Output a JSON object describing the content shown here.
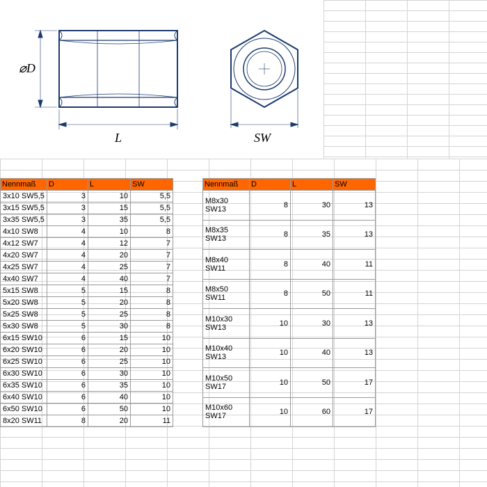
{
  "diagram": {
    "label_d": "⌀D",
    "label_l": "L",
    "label_sw": "SW",
    "stroke": "#1a3a6e",
    "thin_stroke": "#1a3a6e"
  },
  "table1": {
    "headers": [
      "Nennmaß",
      "D",
      "L",
      "SW"
    ],
    "rows": [
      [
        "3x10 SW5,5",
        "3",
        "10",
        "5,5"
      ],
      [
        "3x15 SW5,5",
        "3",
        "15",
        "5,5"
      ],
      [
        "3x35 SW5,5",
        "3",
        "35",
        "5,5"
      ],
      [
        "4x10 SW8",
        "4",
        "10",
        "8"
      ],
      [
        "4x12 SW7",
        "4",
        "12",
        "7"
      ],
      [
        "4x20 SW7",
        "4",
        "20",
        "7"
      ],
      [
        "4x25 SW7",
        "4",
        "25",
        "7"
      ],
      [
        "4x40 SW7",
        "4",
        "40",
        "7"
      ],
      [
        "5x15 SW8",
        "5",
        "15",
        "8"
      ],
      [
        "5x20 SW8",
        "5",
        "20",
        "8"
      ],
      [
        "5x25 SW8",
        "5",
        "25",
        "8"
      ],
      [
        "5x30 SW8",
        "5",
        "30",
        "8"
      ],
      [
        "6x15 SW10",
        "6",
        "15",
        "10"
      ],
      [
        "6x20 SW10",
        "6",
        "20",
        "10"
      ],
      [
        "6x25 SW10",
        "6",
        "25",
        "10"
      ],
      [
        "6x30 SW10",
        "6",
        "30",
        "10"
      ],
      [
        "6x35 SW10",
        "6",
        "35",
        "10"
      ],
      [
        "6x40 SW10",
        "6",
        "40",
        "10"
      ],
      [
        "6x50 SW10",
        "6",
        "50",
        "10"
      ],
      [
        "8x20 SW11",
        "8",
        "20",
        "11"
      ]
    ]
  },
  "table2": {
    "headers": [
      "Nennmaß",
      "D",
      "L",
      "SW"
    ],
    "rows": [
      [
        "M8x30 SW13",
        "8",
        "30",
        "13"
      ],
      [
        "M8x35 SW13",
        "8",
        "35",
        "13"
      ],
      [
        "M8x40 SW11",
        "8",
        "40",
        "11"
      ],
      [
        "M8x50 SW11",
        "8",
        "50",
        "11"
      ],
      [
        "M10x30 SW13",
        "10",
        "30",
        "13"
      ],
      [
        "M10x40 SW13",
        "10",
        "40",
        "13"
      ],
      [
        "M10x50 SW17",
        "10",
        "50",
        "17"
      ],
      [
        "M10x60 SW17",
        "10",
        "60",
        "17"
      ]
    ]
  },
  "colors": {
    "header_bg": "#ff6600",
    "border": "#999999",
    "grid": "#d4d4d4"
  }
}
